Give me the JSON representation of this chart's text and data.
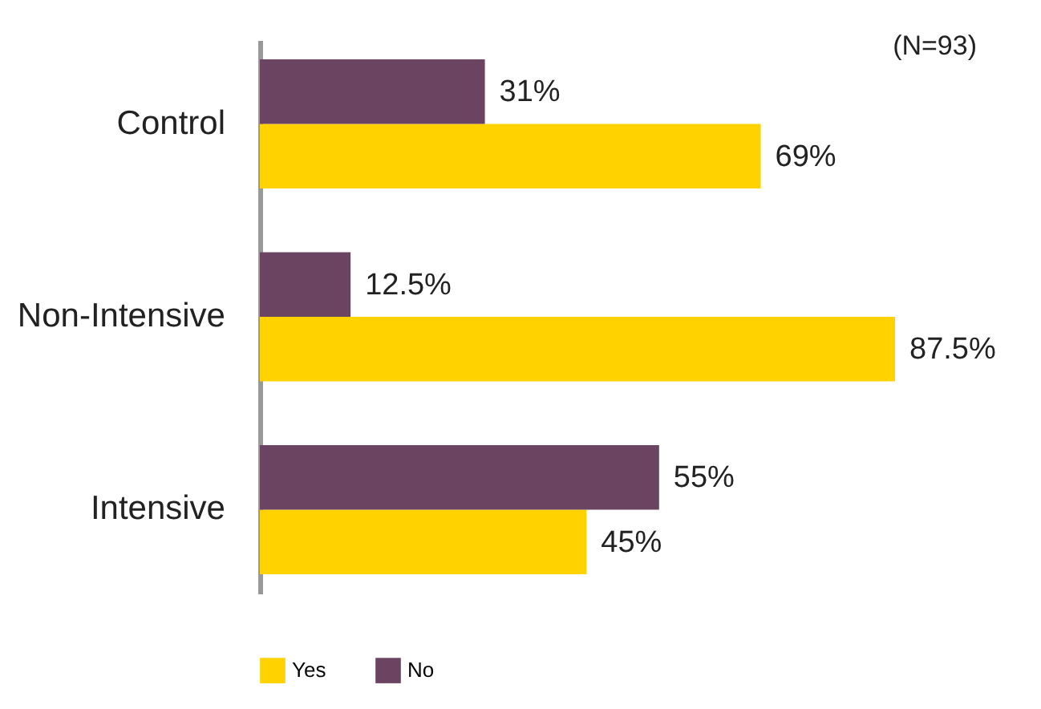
{
  "chart_data": {
    "type": "bar",
    "orientation": "horizontal",
    "categories": [
      "Control",
      "Non-Intensive",
      "Intensive"
    ],
    "series": [
      {
        "name": "Yes",
        "color": "#ffd200",
        "values": [
          69,
          87.5,
          45
        ],
        "value_labels": [
          "69%",
          "87.5%",
          "45%"
        ]
      },
      {
        "name": "No",
        "color": "#6b4462",
        "values": [
          31,
          12.5,
          55
        ],
        "value_labels": [
          "31%",
          "12.5%",
          "55%"
        ]
      }
    ],
    "tick_labels": "y",
    "legend": "bottom left",
    "annotations": [
      "(N=93)"
    ]
  }
}
